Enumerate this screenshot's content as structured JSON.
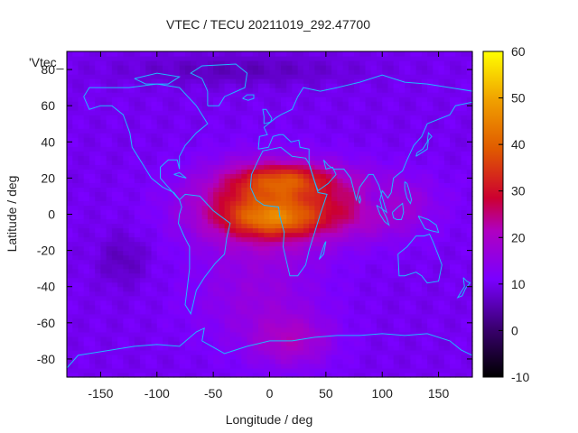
{
  "chart_data": {
    "type": "heatmap",
    "title": "VTEC / TECU 20211019_292.47700",
    "xlabel": "Longitude / deg",
    "ylabel": "Latitude / deg",
    "series_label": "'Vtec_",
    "xlim": [
      -180,
      180
    ],
    "ylim": [
      -90,
      90
    ],
    "x_ticks": [
      -150,
      -100,
      -50,
      0,
      50,
      100,
      150
    ],
    "x_tick_labels": [
      "-150",
      "-100",
      "-50",
      "0",
      "50",
      "100",
      "150"
    ],
    "y_ticks": [
      -80,
      -60,
      -40,
      -20,
      0,
      20,
      40,
      60,
      80
    ],
    "y_tick_labels": [
      "-80",
      "-60",
      "-40",
      "-20",
      "0",
      "20",
      "40",
      "60",
      "80"
    ],
    "colorbar": {
      "range": [
        -10,
        60
      ],
      "ticks": [
        -10,
        0,
        10,
        20,
        30,
        40,
        50,
        60
      ],
      "tick_labels": [
        "-10",
        "0",
        "10",
        "20",
        "30",
        "40",
        "50",
        "60"
      ]
    },
    "background_vtec": 10,
    "anomalies": [
      {
        "name": "equatorial-crest-africa",
        "lon": 0,
        "lat": 5,
        "sigma_lon": 45,
        "sigma_lat": 15,
        "amp": 26
      },
      {
        "name": "north-crest",
        "lon": 15,
        "lat": 20,
        "sigma_lon": 30,
        "sigma_lat": 6,
        "amp": 14
      },
      {
        "name": "south-crest",
        "lon": 5,
        "lat": -3,
        "sigma_lon": 30,
        "sigma_lat": 6,
        "amp": 12
      },
      {
        "name": "indian-ocean-tongue",
        "lon": 95,
        "lat": 5,
        "sigma_lon": 35,
        "sigma_lat": 12,
        "amp": 10
      },
      {
        "name": "south-atlantic-tail",
        "lon": -10,
        "lat": -45,
        "sigma_lon": 40,
        "sigma_lat": 20,
        "amp": 6
      },
      {
        "name": "antarctic-patch",
        "lon": 20,
        "lat": -70,
        "sigma_lon": 25,
        "sigma_lat": 10,
        "amp": 9
      },
      {
        "name": "southeast-asia-low",
        "lon": 95,
        "lat": 8,
        "sigma_lon": 10,
        "sigma_lat": 6,
        "amp": -7
      },
      {
        "name": "arctic-low",
        "lon": -30,
        "lat": 80,
        "sigma_lon": 70,
        "sigma_lat": 6,
        "amp": -4
      },
      {
        "name": "pacific-south-low",
        "lon": -130,
        "lat": -25,
        "sigma_lon": 15,
        "sigma_lat": 10,
        "amp": -4
      }
    ],
    "coastlines": [
      {
        "name": "north-america",
        "points": [
          [
            -165,
            65
          ],
          [
            -160,
            70
          ],
          [
            -140,
            70
          ],
          [
            -125,
            70
          ],
          [
            -100,
            72
          ],
          [
            -80,
            70
          ],
          [
            -65,
            60
          ],
          [
            -55,
            50
          ],
          [
            -65,
            45
          ],
          [
            -75,
            38
          ],
          [
            -80,
            32
          ],
          [
            -80,
            25
          ],
          [
            -82,
            30
          ],
          [
            -90,
            30
          ],
          [
            -97,
            26
          ],
          [
            -97,
            20
          ],
          [
            -90,
            15
          ],
          [
            -83,
            10
          ],
          [
            -80,
            8
          ],
          [
            -85,
            12
          ],
          [
            -95,
            15
          ],
          [
            -105,
            20
          ],
          [
            -110,
            25
          ],
          [
            -117,
            32
          ],
          [
            -122,
            37
          ],
          [
            -124,
            45
          ],
          [
            -130,
            55
          ],
          [
            -140,
            60
          ],
          [
            -150,
            60
          ],
          [
            -160,
            58
          ],
          [
            -165,
            65
          ]
        ]
      },
      {
        "name": "south-america",
        "points": [
          [
            -80,
            8
          ],
          [
            -75,
            11
          ],
          [
            -62,
            10
          ],
          [
            -50,
            2
          ],
          [
            -35,
            -5
          ],
          [
            -38,
            -13
          ],
          [
            -40,
            -22
          ],
          [
            -48,
            -27
          ],
          [
            -58,
            -35
          ],
          [
            -65,
            -42
          ],
          [
            -68,
            -50
          ],
          [
            -70,
            -55
          ],
          [
            -75,
            -50
          ],
          [
            -73,
            -40
          ],
          [
            -71,
            -30
          ],
          [
            -71,
            -18
          ],
          [
            -76,
            -12
          ],
          [
            -81,
            -5
          ],
          [
            -80,
            0
          ],
          [
            -78,
            4
          ],
          [
            -80,
            8
          ]
        ]
      },
      {
        "name": "africa",
        "points": [
          [
            -17,
            15
          ],
          [
            -16,
            22
          ],
          [
            -10,
            30
          ],
          [
            -6,
            35
          ],
          [
            10,
            37
          ],
          [
            20,
            32
          ],
          [
            32,
            31
          ],
          [
            35,
            28
          ],
          [
            43,
            12
          ],
          [
            51,
            11
          ],
          [
            45,
            0
          ],
          [
            40,
            -10
          ],
          [
            35,
            -20
          ],
          [
            32,
            -28
          ],
          [
            25,
            -34
          ],
          [
            18,
            -34
          ],
          [
            12,
            -18
          ],
          [
            13,
            -10
          ],
          [
            9,
            -1
          ],
          [
            8,
            4
          ],
          [
            -5,
            5
          ],
          [
            -12,
            8
          ],
          [
            -17,
            15
          ]
        ]
      },
      {
        "name": "eurasia",
        "points": [
          [
            -10,
            36
          ],
          [
            -9,
            43
          ],
          [
            -2,
            44
          ],
          [
            -5,
            48
          ],
          [
            5,
            53
          ],
          [
            10,
            55
          ],
          [
            20,
            58
          ],
          [
            25,
            65
          ],
          [
            30,
            70
          ],
          [
            45,
            68
          ],
          [
            60,
            70
          ],
          [
            80,
            73
          ],
          [
            100,
            77
          ],
          [
            120,
            73
          ],
          [
            140,
            72
          ],
          [
            160,
            70
          ],
          [
            180,
            68
          ],
          [
            180,
            62
          ],
          [
            165,
            60
          ],
          [
            160,
            55
          ],
          [
            140,
            50
          ],
          [
            135,
            43
          ],
          [
            128,
            38
          ],
          [
            122,
            30
          ],
          [
            118,
            24
          ],
          [
            110,
            20
          ],
          [
            108,
            12
          ],
          [
            105,
            9
          ],
          [
            100,
            13
          ],
          [
            98,
            8
          ],
          [
            100,
            3
          ],
          [
            104,
            1
          ],
          [
            97,
            16
          ],
          [
            92,
            22
          ],
          [
            88,
            22
          ],
          [
            80,
            15
          ],
          [
            77,
            8
          ],
          [
            72,
            20
          ],
          [
            66,
            25
          ],
          [
            57,
            25
          ],
          [
            52,
            27
          ],
          [
            48,
            30
          ],
          [
            50,
            25
          ],
          [
            56,
            26
          ],
          [
            59,
            22
          ],
          [
            52,
            17
          ],
          [
            43,
            13
          ],
          [
            40,
            18
          ],
          [
            35,
            28
          ],
          [
            35,
            36
          ],
          [
            27,
            37
          ],
          [
            26,
            41
          ],
          [
            19,
            40
          ],
          [
            12,
            44
          ],
          [
            9,
            44
          ],
          [
            3,
            43
          ],
          [
            -1,
            37
          ],
          [
            -10,
            36
          ]
        ]
      },
      {
        "name": "australia",
        "points": [
          [
            114,
            -22
          ],
          [
            122,
            -18
          ],
          [
            130,
            -12
          ],
          [
            137,
            -12
          ],
          [
            142,
            -11
          ],
          [
            145,
            -15
          ],
          [
            150,
            -23
          ],
          [
            153,
            -28
          ],
          [
            150,
            -37
          ],
          [
            140,
            -38
          ],
          [
            135,
            -34
          ],
          [
            130,
            -32
          ],
          [
            120,
            -34
          ],
          [
            115,
            -34
          ],
          [
            114,
            -22
          ]
        ]
      },
      {
        "name": "antarctica",
        "points": [
          [
            -180,
            -85
          ],
          [
            -170,
            -78
          ],
          [
            -150,
            -76
          ],
          [
            -120,
            -73
          ],
          [
            -100,
            -72
          ],
          [
            -80,
            -73
          ],
          [
            -65,
            -65
          ],
          [
            -58,
            -63
          ],
          [
            -60,
            -70
          ],
          [
            -40,
            -77
          ],
          [
            -20,
            -73
          ],
          [
            0,
            -70
          ],
          [
            20,
            -70
          ],
          [
            40,
            -68
          ],
          [
            60,
            -67
          ],
          [
            80,
            -67
          ],
          [
            100,
            -66
          ],
          [
            120,
            -67
          ],
          [
            140,
            -66
          ],
          [
            160,
            -70
          ],
          [
            170,
            -75
          ],
          [
            180,
            -78
          ],
          [
            180,
            -85
          ]
        ]
      },
      {
        "name": "greenland",
        "points": [
          [
            -55,
            60
          ],
          [
            -45,
            60
          ],
          [
            -40,
            65
          ],
          [
            -22,
            70
          ],
          [
            -20,
            78
          ],
          [
            -30,
            83
          ],
          [
            -60,
            82
          ],
          [
            -70,
            78
          ],
          [
            -60,
            75
          ],
          [
            -55,
            68
          ],
          [
            -55,
            60
          ]
        ]
      },
      {
        "name": "madagascar",
        "points": [
          [
            44,
            -25
          ],
          [
            49,
            -16
          ],
          [
            50,
            -15
          ],
          [
            48,
            -22
          ],
          [
            44,
            -25
          ]
        ]
      },
      {
        "name": "japan",
        "points": [
          [
            130,
            32
          ],
          [
            135,
            34
          ],
          [
            140,
            36
          ],
          [
            141,
            41
          ],
          [
            144,
            43
          ],
          [
            141,
            45
          ],
          [
            140,
            40
          ],
          [
            136,
            36
          ],
          [
            131,
            34
          ],
          [
            130,
            32
          ]
        ]
      },
      {
        "name": "borneo",
        "points": [
          [
            109,
            1
          ],
          [
            114,
            4
          ],
          [
            118,
            6
          ],
          [
            119,
            1
          ],
          [
            117,
            -3
          ],
          [
            113,
            -3
          ],
          [
            110,
            -2
          ],
          [
            109,
            1
          ]
        ]
      },
      {
        "name": "sumatra",
        "points": [
          [
            95,
            5
          ],
          [
            100,
            3
          ],
          [
            104,
            -2
          ],
          [
            106,
            -6
          ],
          [
            102,
            -4
          ],
          [
            98,
            0
          ],
          [
            95,
            5
          ]
        ]
      },
      {
        "name": "new-guinea",
        "points": [
          [
            132,
            -1
          ],
          [
            141,
            -3
          ],
          [
            148,
            -6
          ],
          [
            150,
            -10
          ],
          [
            143,
            -9
          ],
          [
            138,
            -8
          ],
          [
            132,
            -1
          ]
        ]
      },
      {
        "name": "new-zealand",
        "points": [
          [
            172,
            -35
          ],
          [
            175,
            -37
          ],
          [
            178,
            -38
          ],
          [
            174,
            -41
          ],
          [
            171,
            -45
          ],
          [
            167,
            -46
          ],
          [
            170,
            -43
          ],
          [
            173,
            -40
          ],
          [
            172,
            -35
          ]
        ]
      },
      {
        "name": "uk",
        "points": [
          [
            -5,
            50
          ],
          [
            1,
            51
          ],
          [
            2,
            53
          ],
          [
            -3,
            58
          ],
          [
            -6,
            58
          ],
          [
            -5,
            54
          ],
          [
            -5,
            50
          ]
        ]
      },
      {
        "name": "iceland",
        "points": [
          [
            -24,
            64
          ],
          [
            -20,
            66
          ],
          [
            -14,
            66
          ],
          [
            -14,
            64
          ],
          [
            -19,
            63
          ],
          [
            -24,
            64
          ]
        ]
      },
      {
        "name": "cuba",
        "points": [
          [
            -85,
            22
          ],
          [
            -80,
            23
          ],
          [
            -74,
            20
          ],
          [
            -80,
            21
          ],
          [
            -85,
            22
          ]
        ]
      },
      {
        "name": "sri-lanka",
        "points": [
          [
            80,
            6
          ],
          [
            81,
            8
          ],
          [
            80,
            10
          ],
          [
            79,
            8
          ],
          [
            80,
            6
          ]
        ]
      },
      {
        "name": "philippines",
        "points": [
          [
            120,
            18
          ],
          [
            122,
            17
          ],
          [
            124,
            13
          ],
          [
            126,
            8
          ],
          [
            125,
            6
          ],
          [
            122,
            9
          ],
          [
            120,
            14
          ],
          [
            120,
            18
          ]
        ]
      },
      {
        "name": "canadian-archipelago",
        "points": [
          [
            -120,
            75
          ],
          [
            -100,
            78
          ],
          [
            -80,
            76
          ],
          [
            -90,
            72
          ],
          [
            -110,
            72
          ],
          [
            -120,
            75
          ]
        ]
      }
    ]
  }
}
